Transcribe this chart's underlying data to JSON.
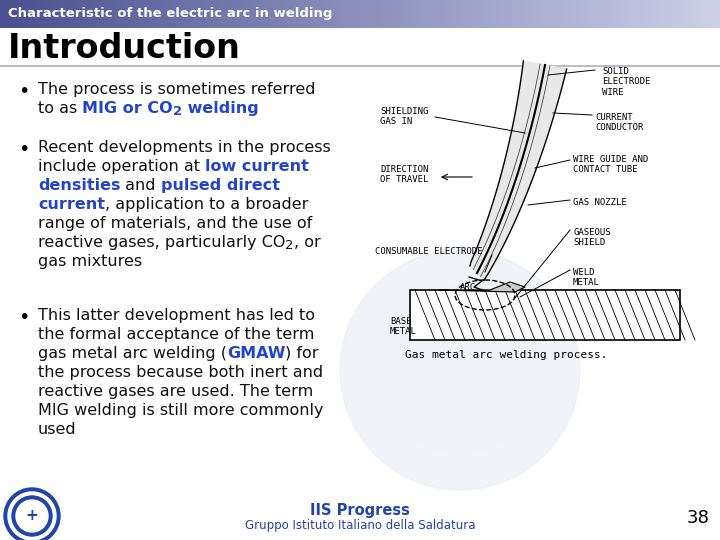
{
  "title_bar_text": "Characteristic of the electric arc in welding",
  "bg_color": "#ffffff",
  "heading": "Introduction",
  "footer_main": "IIS Progress",
  "footer_sub": "Gruppo Istituto Italiano della Saldatura",
  "footer_color": "#2244aa",
  "page_number": "38",
  "highlight_color": "#2244cc",
  "watermark_color": "#e8ecf5"
}
